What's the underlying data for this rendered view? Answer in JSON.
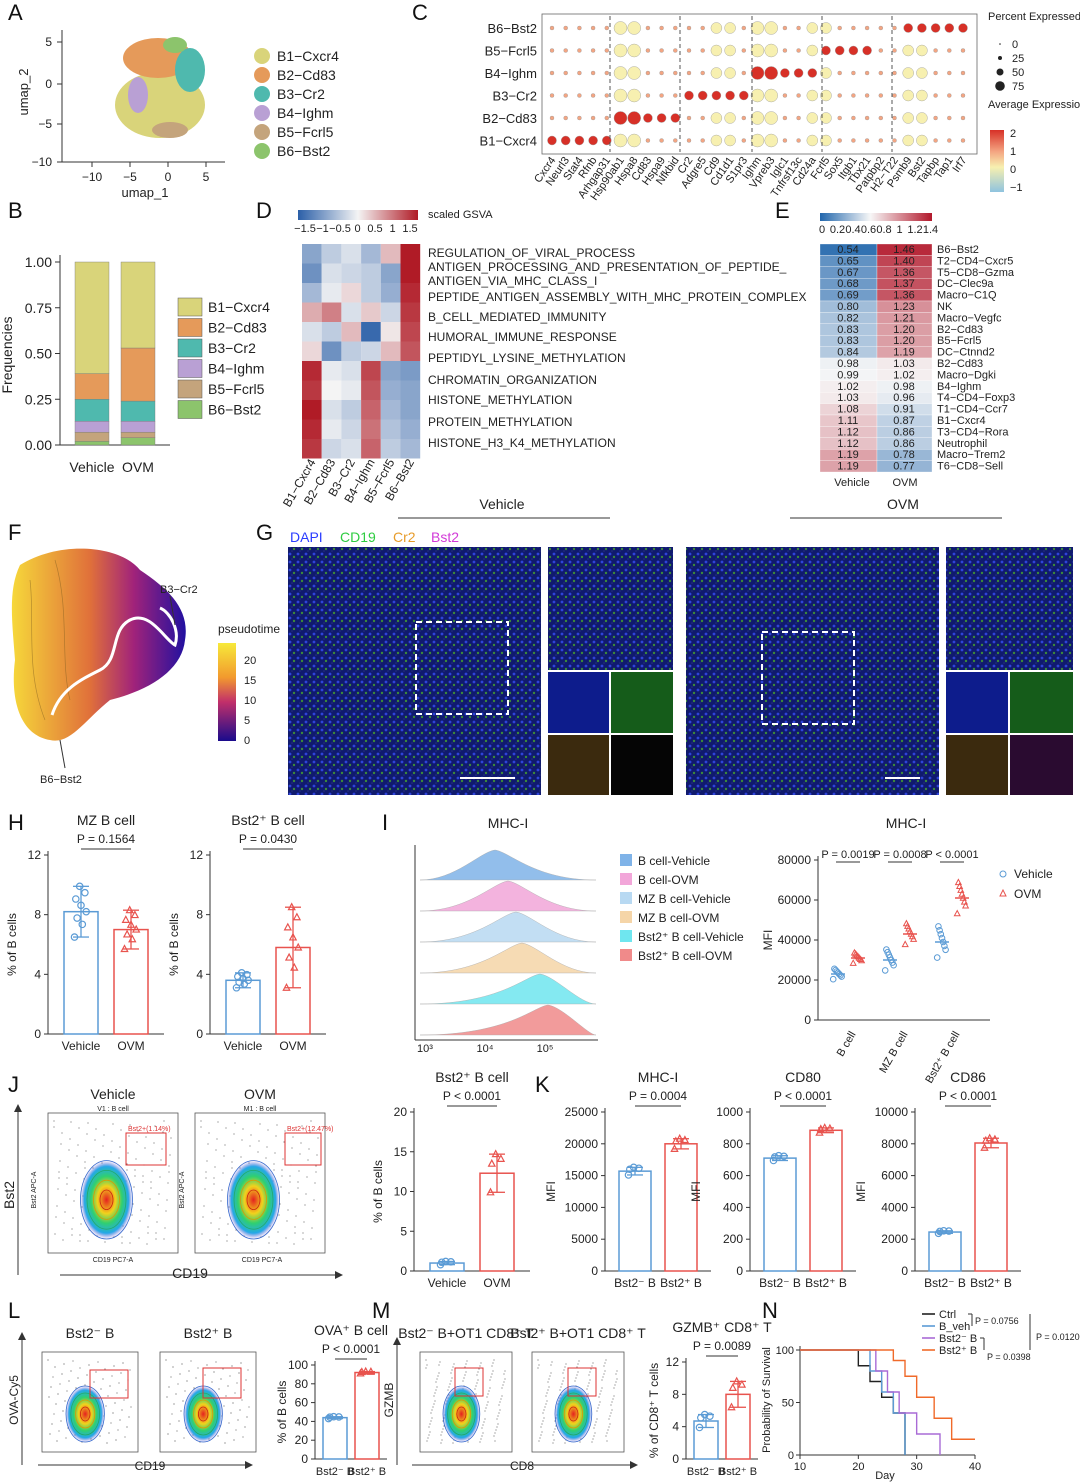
{
  "panels": {
    "A": {
      "label": "A",
      "xlabel": "umap_1",
      "ylabel": "umap_2",
      "xticks": [
        "−10",
        "−5",
        "0",
        "5"
      ],
      "yticks": [
        "5",
        "0",
        "−5",
        "−10"
      ],
      "legend": [
        {
          "name": "B1−Cxcr4",
          "color": "#d9d47a"
        },
        {
          "name": "B2−Cd83",
          "color": "#e59a5a"
        },
        {
          "name": "B3−Cr2",
          "color": "#4fb9ae"
        },
        {
          "name": "B4−Ighm",
          "color": "#b9a0d4"
        },
        {
          "name": "B5−Fcrl5",
          "color": "#c4a47c"
        },
        {
          "name": "B6−Bst2",
          "color": "#8cc46c"
        }
      ]
    },
    "B": {
      "label": "B",
      "ylabel": "Frequencies",
      "yticks": [
        "1.00",
        "0.75",
        "0.50",
        "0.25",
        "0.00"
      ],
      "legend": [
        "B1−Cxcr4",
        "B2−Cd83",
        "B3−Cr2",
        "B4−Ighm",
        "B5−Fcrl5",
        "B6−Bst2"
      ]
    },
    "C": {
      "label": "C",
      "rows": [
        "B6−Bst2",
        "B5−Fcrl5",
        "B4−Ighm",
        "B3−Cr2",
        "B2−Cd83",
        "B1−Cxcr4"
      ],
      "genes": [
        "Cxcr4",
        "Neurl3",
        "Stat4",
        "Rfnb",
        "Arhgap31",
        "Hsp90ab1",
        "Hspa8",
        "Cd83",
        "Hspa9",
        "Nfkbid",
        "Cr2",
        "Adgre5",
        "Cd9",
        "Cd1d1",
        "S1pr3",
        "Ighm",
        "Vpreb3",
        "Iglc1",
        "Tnfrsf13c",
        "Cd24a",
        "Fcrl5",
        "Sox5",
        "Itgb1",
        "Tbx21",
        "Patpbp2",
        "H2−T22",
        "Psmb9",
        "Bst2",
        "Tapbp",
        "Tap1",
        "Irf7"
      ],
      "legend_size_title": "Percent Expressed",
      "sizes": [
        "0",
        "25",
        "50",
        "75"
      ],
      "legend_color_title": "Average Expression",
      "color_ticks": [
        "2",
        "1",
        "0",
        "−1"
      ]
    },
    "D": {
      "label": "D",
      "colorbar_title": "scaled GSVA",
      "colorbar_ticks": [
        "−1.5",
        "−1",
        "−0.5",
        "0",
        "0.5",
        "1",
        "1.5"
      ],
      "pathways": [
        "REGULATION_OF_VIRAL_PROCESS",
        "ANTIGEN_PROCESSING_AND_PRESENTATION_OF_PEPTIDE_",
        "ANTIGEN_VIA_MHC_CLASS_I",
        "PEPTIDE_ANTIGEN_ASSEMBLY_WITH_MHC_PROTEIN_COMPLEX",
        "B_CELL_MEDIATED_IMMUNITY",
        "HUMORAL_IMMUNE_RESPONSE",
        "PEPTIDYL_LYSINE_METHYLATION",
        "CHROMATIN_ORGANIZATION",
        "HISTONE_METHYLATION",
        "PROTEIN_METHYLATION",
        "HISTONE_H3_K4_METHYLATION"
      ],
      "columns": [
        "B1−Cxcr4",
        "B2−Cd83",
        "B3−Cr2",
        "B4−Ighm",
        "B5−Fcrl5",
        "B6−Bst2"
      ],
      "vehicle_label": "Vehicle",
      "ovm_label": "OVM"
    },
    "E": {
      "label": "E",
      "colorbar_ticks": [
        "0",
        "0.2",
        "0.4",
        "0.6",
        "0.8",
        "1",
        "1.2",
        "1.4"
      ],
      "rows": [
        {
          "name": "B6−Bst2",
          "v": "0.54",
          "o": "1.46"
        },
        {
          "name": "T2−CD4−Cxcr5",
          "v": "0.65",
          "o": "1.40"
        },
        {
          "name": "T5−CD8−Gzma",
          "v": "0.67",
          "o": "1.36"
        },
        {
          "name": "DC−Clec9a",
          "v": "0.68",
          "o": "1.37"
        },
        {
          "name": "Macro−C1Q",
          "v": "0.69",
          "o": "1.36"
        },
        {
          "name": "NK",
          "v": "0.80",
          "o": "1.23"
        },
        {
          "name": "Macro−Vegfc",
          "v": "0.82",
          "o": "1.21"
        },
        {
          "name": "B2−Cd83",
          "v": "0.83",
          "o": "1.20"
        },
        {
          "name": "B5−Fcrl5",
          "v": "0.83",
          "o": "1.20"
        },
        {
          "name": "DC−Ctnnd2",
          "v": "0.84",
          "o": "1.19"
        },
        {
          "name": "B2−Cd83",
          "v": "0.98",
          "o": "1.03"
        },
        {
          "name": "Macro−Dgki",
          "v": "0.99",
          "o": "1.02"
        },
        {
          "name": "B4−Ighm",
          "v": "1.02",
          "o": "0.98"
        },
        {
          "name": "T4−CD4−Foxp3",
          "v": "1.03",
          "o": "0.96"
        },
        {
          "name": "T1−CD4−Ccr7",
          "v": "1.08",
          "o": "0.91"
        },
        {
          "name": "B1−Cxcr4",
          "v": "1.11",
          "o": "0.87"
        },
        {
          "name": "T3−CD4−Rora",
          "v": "1.12",
          "o": "0.86"
        },
        {
          "name": "Neutrophil",
          "v": "1.12",
          "o": "0.86"
        },
        {
          "name": "Macro−Trem2",
          "v": "1.19",
          "o": "0.78"
        },
        {
          "name": "T6−CD8−Sell",
          "v": "1.19",
          "o": "0.77"
        }
      ],
      "col_labels": [
        "Vehicle",
        "OVM"
      ]
    },
    "F": {
      "label": "F",
      "legend_title": "pseudotime",
      "ticks": [
        "20",
        "15",
        "10",
        "5",
        "0"
      ],
      "start": "B3−Cr2",
      "end": "B6−Bst2"
    },
    "G": {
      "label": "G",
      "channels": [
        {
          "name": "DAPI",
          "color": "#2a3cff"
        },
        {
          "name": "CD19",
          "color": "#2ecc40"
        },
        {
          "name": "Cr2",
          "color": "#e79c2a"
        },
        {
          "name": "Bst2",
          "color": "#d23ad8"
        }
      ]
    },
    "H": {
      "label": "H",
      "yticks": [
        "12",
        "8",
        "4",
        "0"
      ],
      "ylabel": "% of B cells",
      "plots": [
        {
          "title": "MZ B cell",
          "p": "P = 0.1564",
          "cats": [
            "Vehicle",
            "OVM"
          ]
        },
        {
          "title": "Bst2⁺ B cell",
          "p": "P = 0.0430",
          "cats": [
            "Vehicle",
            "OVM"
          ]
        }
      ]
    },
    "I": {
      "label": "I",
      "hist_title": "MHC-I",
      "hist_xticks": [
        "10³",
        "10⁴",
        "10⁵"
      ],
      "hist_legend": [
        {
          "name": "B cell-Vehicle",
          "color": "#7fb3e8"
        },
        {
          "name": "B cell-OVM",
          "color": "#f2a6d9"
        },
        {
          "name": "MZ B cell-Vehicle",
          "color": "#b8d9f2"
        },
        {
          "name": "MZ B cell-OVM",
          "color": "#f5d5a8"
        },
        {
          "name": "Bst2⁺ B cell-Vehicle",
          "color": "#6fe6ef"
        },
        {
          "name": "Bst2⁺ B cell-OVM",
          "color": "#f08a8a"
        }
      ],
      "scatter_title": "MHC-I",
      "ylabel": "MFI",
      "yticks": [
        "80000",
        "60000",
        "40000",
        "20000",
        "0"
      ],
      "p": [
        "P = 0.0019",
        "P = 0.0008",
        "P < 0.0001"
      ],
      "cats": [
        "B cell",
        "MZ B cell",
        "Bst2⁺ B cell"
      ],
      "legend": [
        "Vehicle",
        "OVM"
      ]
    },
    "J": {
      "label": "J",
      "flow_titles": [
        "Vehicle",
        "OVM"
      ],
      "gates": [
        "Bst2+(1.14%)",
        "Bst2+(12.47%)"
      ],
      "subtitles": [
        "V1 : B cell",
        "M1 : B cell"
      ],
      "xaxis": "CD19",
      "yaxis": "Bst2",
      "xsub": "CD19 PC7-A",
      "ysub": "Bst2 APC-A",
      "bar_title": "Bst2⁺ B cell",
      "p": "P < 0.0001",
      "yticks": [
        "20",
        "15",
        "10",
        "5",
        "0"
      ],
      "ylabel": "% of B cells",
      "cats": [
        "Vehicle",
        "OVM"
      ]
    },
    "K": {
      "label": "K",
      "plots": [
        {
          "title": "MHC-I",
          "p": "P = 0.0004",
          "yticks": [
            "25000",
            "20000",
            "15000",
            "10000",
            "5000",
            "0"
          ],
          "cats": [
            "Bst2⁻ B",
            "Bst2⁺ B"
          ]
        },
        {
          "title": "CD80",
          "p": "P < 0.0001",
          "yticks": [
            "1000",
            "800",
            "600",
            "400",
            "200",
            "0"
          ],
          "cats": [
            "Bst2⁻ B",
            "Bst2⁺ B"
          ]
        },
        {
          "title": "CD86",
          "p": "P < 0.0001",
          "yticks": [
            "10000",
            "8000",
            "6000",
            "4000",
            "2000",
            "0"
          ],
          "cats": [
            "Bst2⁻ B",
            "Bst2⁺ B"
          ]
        }
      ],
      "ylabel": "MFI"
    },
    "L": {
      "label": "L",
      "flow_titles": [
        "Bst2⁻ B",
        "Bst2⁺ B"
      ],
      "xaxis": "CD19",
      "yaxis": "OVA-Cy5",
      "bar_title": "OVA⁺ B cell",
      "p": "P < 0.0001",
      "yticks": [
        "100",
        "80",
        "60",
        "40",
        "20",
        "0"
      ],
      "ylabel": "% of B cells",
      "cats": [
        "Bst2⁻ B",
        "Bst2⁺ B"
      ]
    },
    "M": {
      "label": "M",
      "flow_titles": [
        "Bst2⁻ B+OT1 CD8⁺ T",
        "Bst2⁺ B+OT1 CD8⁺ T"
      ],
      "xaxis": "CD8",
      "yaxis": "GZMB",
      "bar_title": "GZMB⁺ CD8⁺ T",
      "p": "P = 0.0089",
      "yticks": [
        "12",
        "8",
        "4",
        "0"
      ],
      "ylabel": "% of CD8⁺ T cells",
      "cats": [
        "Bst2⁻ B",
        "Bst2⁺ B"
      ]
    },
    "N": {
      "label": "N",
      "legend": [
        "Ctrl",
        "B_veh",
        "Bst2⁻ B",
        "Bst2⁺ B"
      ],
      "p": [
        "P = 0.0756",
        "P = 0.0398",
        "P = 0.0120"
      ],
      "xlabel": "Day",
      "ylabel": "Probability of Survival",
      "xticks": [
        "10",
        "20",
        "30",
        "40"
      ],
      "yticks": [
        "100",
        "50",
        "0"
      ]
    }
  },
  "chart_data": [
    {
      "type": "bar",
      "panel": "B",
      "stacked": true,
      "categories": [
        "Vehicle",
        "OVM"
      ],
      "series": [
        {
          "name": "B6−Bst2",
          "values": [
            0.02,
            0.04
          ],
          "color": "#8cc46c"
        },
        {
          "name": "B5−Fcrl5",
          "values": [
            0.05,
            0.03
          ],
          "color": "#c4a47c"
        },
        {
          "name": "B4−Ighm",
          "values": [
            0.06,
            0.06
          ],
          "color": "#b9a0d4"
        },
        {
          "name": "B3−Cr2",
          "values": [
            0.12,
            0.11
          ],
          "color": "#4fb9ae"
        },
        {
          "name": "B2−Cd83",
          "values": [
            0.14,
            0.29
          ],
          "color": "#e59a5a"
        },
        {
          "name": "B1−Cxcr4",
          "values": [
            0.61,
            0.47
          ],
          "color": "#d9d47a"
        }
      ],
      "ylim": [
        0,
        1
      ]
    },
    {
      "type": "bar",
      "panel": "H1",
      "categories": [
        "Vehicle",
        "OVM"
      ],
      "values": [
        8.2,
        7.0
      ],
      "err": [
        1.7,
        1.3
      ],
      "ylim": [
        0,
        12
      ]
    },
    {
      "type": "bar",
      "panel": "H2",
      "categories": [
        "Vehicle",
        "OVM"
      ],
      "values": [
        3.6,
        5.8
      ],
      "err": [
        0.5,
        2.7
      ],
      "ylim": [
        0,
        12
      ]
    },
    {
      "type": "scatter",
      "panel": "I",
      "categories": [
        "B cell",
        "MZ B cell",
        "Bst2⁺ B cell"
      ],
      "series": [
        {
          "name": "Vehicle",
          "values": [
            23000,
            30000,
            39000
          ]
        },
        {
          "name": "OVM",
          "values": [
            31000,
            43000,
            61000
          ]
        }
      ],
      "ylim": [
        0,
        80000
      ]
    },
    {
      "type": "bar",
      "panel": "J",
      "categories": [
        "Vehicle",
        "OVM"
      ],
      "values": [
        1.0,
        12.3
      ],
      "err": [
        0.2,
        2.4
      ],
      "ylim": [
        0,
        20
      ]
    },
    {
      "type": "bar",
      "panel": "K1",
      "categories": [
        "Bst2⁻ B",
        "Bst2⁺ B"
      ],
      "values": [
        15700,
        20000
      ],
      "err": [
        600,
        800
      ],
      "ylim": [
        0,
        25000
      ]
    },
    {
      "type": "bar",
      "panel": "K2",
      "categories": [
        "Bst2⁻ B",
        "Bst2⁺ B"
      ],
      "values": [
        710,
        885
      ],
      "err": [
        15,
        15
      ],
      "ylim": [
        0,
        1000
      ]
    },
    {
      "type": "bar",
      "panel": "K3",
      "categories": [
        "Bst2⁻ B",
        "Bst2⁺ B"
      ],
      "values": [
        2450,
        8050
      ],
      "err": [
        80,
        300
      ],
      "ylim": [
        0,
        10000
      ]
    },
    {
      "type": "bar",
      "panel": "L",
      "categories": [
        "Bst2⁻ B",
        "Bst2⁺ B"
      ],
      "values": [
        44,
        92
      ],
      "err": [
        1,
        1
      ],
      "ylim": [
        0,
        100
      ]
    },
    {
      "type": "bar",
      "panel": "M",
      "categories": [
        "Bst2⁻ B",
        "Bst2⁺ B"
      ],
      "values": [
        4.7,
        8.0
      ],
      "err": [
        0.8,
        1.6
      ],
      "ylim": [
        0,
        12
      ]
    },
    {
      "type": "line",
      "panel": "N",
      "series": [
        {
          "name": "Ctrl",
          "color": "#222222",
          "x": [
            10,
            18,
            20,
            22,
            24,
            26,
            28
          ],
          "y": [
            100,
            100,
            85,
            70,
            55,
            40,
            0
          ]
        },
        {
          "name": "B_veh",
          "color": "#5b9bd5",
          "x": [
            10,
            20,
            22,
            24,
            26,
            28
          ],
          "y": [
            100,
            100,
            80,
            60,
            40,
            0
          ]
        },
        {
          "name": "Bst2⁻ B",
          "color": "#a96bd6",
          "x": [
            10,
            20,
            23,
            25,
            27,
            30,
            34
          ],
          "y": [
            100,
            100,
            80,
            60,
            40,
            20,
            0
          ]
        },
        {
          "name": "Bst2⁺ B",
          "color": "#f06a2a",
          "x": [
            10,
            23,
            26,
            28,
            30,
            33,
            36,
            40
          ],
          "y": [
            100,
            100,
            90,
            75,
            55,
            35,
            15,
            15
          ]
        }
      ],
      "xlim": [
        10,
        40
      ],
      "ylim": [
        0,
        100
      ]
    }
  ]
}
